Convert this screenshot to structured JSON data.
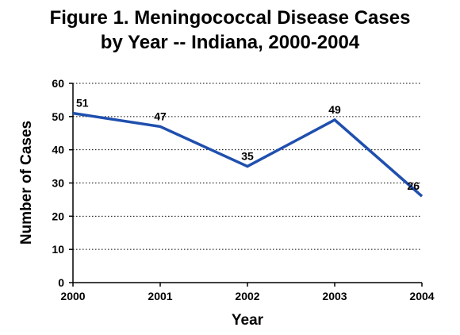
{
  "chart_data": {
    "type": "line",
    "title": "Figure 1. Meningococcal Disease Cases by Year -- Indiana, 2000-2004",
    "title_lines": [
      "Figure 1. Meningococcal Disease Cases",
      "by Year -- Indiana, 2000-2004"
    ],
    "xlabel": "Year",
    "ylabel": "Number of Cases",
    "categories": [
      "2000",
      "2001",
      "2002",
      "2003",
      "2004"
    ],
    "series": [
      {
        "name": "",
        "color": "#1f4fae",
        "values": [
          51,
          47,
          35,
          49,
          26
        ]
      }
    ],
    "ylim": [
      0,
      60
    ],
    "yticks": [
      0,
      10,
      20,
      30,
      40,
      50,
      60
    ],
    "grid": "dotted horizontal",
    "legend": "none",
    "data_labels": true
  }
}
